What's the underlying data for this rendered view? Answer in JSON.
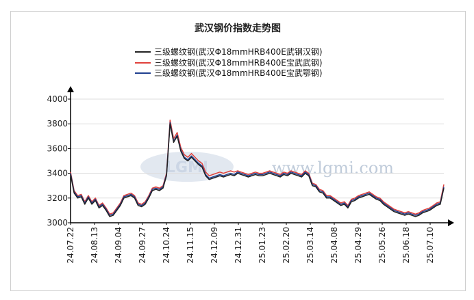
{
  "chart_data": {
    "type": "line",
    "title": "武汉钢价指数走势图",
    "watermark": {
      "logo": "LGMI",
      "text": "www.lgmi.com"
    },
    "xlabel": "",
    "ylabel": "",
    "ylim": [
      3000,
      4000
    ],
    "yticks": [
      "3000",
      "3200",
      "3400",
      "3600",
      "3800",
      "4000"
    ],
    "xticks": [
      "24.07.22",
      "24.08.13",
      "24.09.04",
      "24.09.27",
      "24.10.24",
      "24.11.15",
      "24.12.09",
      "24.12.31",
      "25.01.23",
      "25.02.20",
      "25.03.14",
      "25.04.08",
      "25.04.29",
      "25.05.26",
      "25.06.18",
      "25.07.10"
    ],
    "grid": "horizontal",
    "legend_position": "top",
    "colors": {
      "wugang": "#222222",
      "baowu_wu": "#e0403a",
      "baowu_e": "#1f3f8f"
    },
    "series": [
      {
        "name": "三级螺纹钢(武汉Φ18mmHRB400E武钢汉钢)",
        "key": "wugang",
        "values": [
          3390,
          3240,
          3200,
          3210,
          3150,
          3200,
          3150,
          3180,
          3120,
          3140,
          3100,
          3050,
          3060,
          3100,
          3140,
          3200,
          3210,
          3220,
          3200,
          3140,
          3130,
          3150,
          3200,
          3260,
          3270,
          3260,
          3280,
          3380,
          3800,
          3650,
          3700,
          3580,
          3520,
          3500,
          3530,
          3500,
          3470,
          3450,
          3380,
          3350,
          3360,
          3370,
          3380,
          3370,
          3380,
          3390,
          3380,
          3400,
          3390,
          3380,
          3370,
          3380,
          3390,
          3380,
          3380,
          3390,
          3400,
          3390,
          3380,
          3370,
          3390,
          3380,
          3400,
          3390,
          3380,
          3370,
          3400,
          3380,
          3300,
          3290,
          3250,
          3240,
          3200,
          3200,
          3180,
          3160,
          3140,
          3150,
          3120,
          3170,
          3180,
          3200,
          3210,
          3220,
          3230,
          3210,
          3190,
          3180,
          3150,
          3130,
          3110,
          3090,
          3080,
          3070,
          3060,
          3070,
          3060,
          3050,
          3060,
          3080,
          3090,
          3100,
          3120,
          3140,
          3150,
          3280
        ]
      },
      {
        "name": "三级螺纹钢(武汉Φ18mmHRB400E宝武武钢)",
        "key": "baowu_wu",
        "values": [
          3410,
          3260,
          3220,
          3230,
          3170,
          3220,
          3170,
          3200,
          3140,
          3160,
          3120,
          3070,
          3080,
          3120,
          3160,
          3220,
          3230,
          3240,
          3220,
          3160,
          3150,
          3170,
          3220,
          3280,
          3290,
          3280,
          3300,
          3400,
          3830,
          3680,
          3730,
          3610,
          3550,
          3530,
          3560,
          3530,
          3500,
          3480,
          3410,
          3380,
          3390,
          3400,
          3410,
          3400,
          3410,
          3420,
          3410,
          3420,
          3410,
          3400,
          3390,
          3400,
          3410,
          3400,
          3400,
          3410,
          3420,
          3410,
          3400,
          3390,
          3410,
          3400,
          3420,
          3410,
          3400,
          3390,
          3420,
          3400,
          3320,
          3310,
          3270,
          3260,
          3220,
          3220,
          3200,
          3180,
          3160,
          3170,
          3140,
          3190,
          3200,
          3220,
          3230,
          3240,
          3250,
          3230,
          3210,
          3200,
          3170,
          3150,
          3130,
          3110,
          3100,
          3090,
          3080,
          3090,
          3080,
          3070,
          3080,
          3100,
          3110,
          3120,
          3140,
          3160,
          3170,
          3310
        ]
      },
      {
        "name": "三级螺纹钢(武汉Φ18mmHRB400E宝武鄂钢)",
        "key": "baowu_e",
        "values": [
          3400,
          3250,
          3210,
          3220,
          3160,
          3210,
          3160,
          3190,
          3130,
          3150,
          3110,
          3060,
          3070,
          3110,
          3150,
          3210,
          3220,
          3230,
          3210,
          3150,
          3140,
          3160,
          3210,
          3270,
          3280,
          3270,
          3290,
          3390,
          3810,
          3660,
          3710,
          3590,
          3530,
          3510,
          3540,
          3510,
          3480,
          3460,
          3390,
          3360,
          3370,
          3380,
          3390,
          3380,
          3390,
          3400,
          3390,
          3410,
          3400,
          3390,
          3380,
          3390,
          3400,
          3390,
          3390,
          3400,
          3410,
          3400,
          3390,
          3380,
          3400,
          3390,
          3410,
          3400,
          3390,
          3380,
          3410,
          3390,
          3310,
          3300,
          3260,
          3250,
          3210,
          3210,
          3190,
          3170,
          3150,
          3160,
          3130,
          3180,
          3190,
          3210,
          3220,
          3230,
          3240,
          3220,
          3200,
          3190,
          3160,
          3140,
          3120,
          3100,
          3090,
          3080,
          3070,
          3080,
          3070,
          3060,
          3070,
          3090,
          3100,
          3110,
          3130,
          3150,
          3160,
          3290
        ]
      }
    ]
  }
}
